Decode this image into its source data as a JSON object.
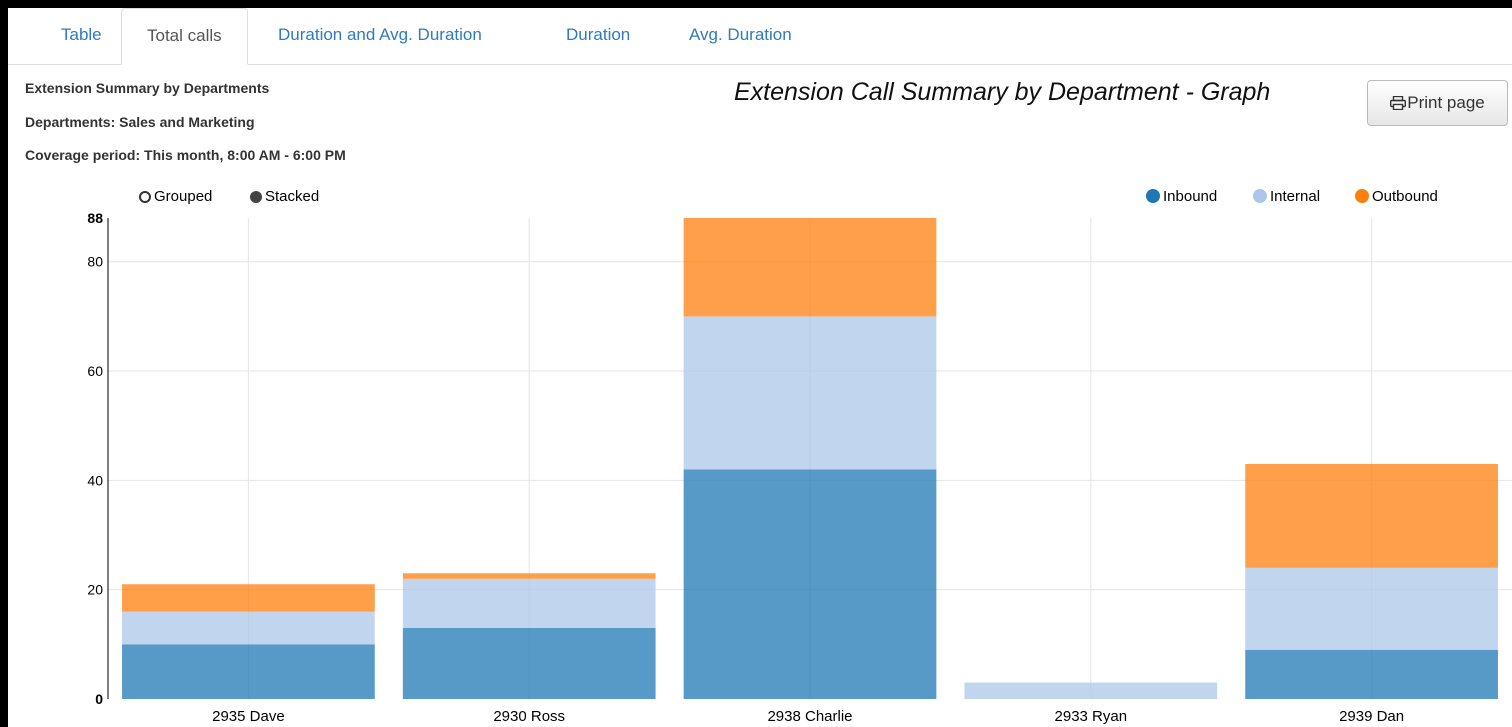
{
  "tabs": [
    {
      "label": "Table",
      "active": false
    },
    {
      "label": "Total calls",
      "active": true
    },
    {
      "label": "Duration and Avg. Duration",
      "active": false
    },
    {
      "label": "Duration",
      "active": false
    },
    {
      "label": "Avg. Duration",
      "active": false
    }
  ],
  "report": {
    "heading": "Extension Summary by Departments",
    "departments": "Departments: Sales and Marketing",
    "coverage": "Coverage period: This month, 8:00 AM - 6:00 PM"
  },
  "graph_title": "Extension Call Summary by Department - Graph",
  "print_button": {
    "label": "Print page",
    "icon": "printer-icon"
  },
  "mode_controls": {
    "grouped_label": "Grouped",
    "stacked_label": "Stacked",
    "selected": "Stacked"
  },
  "chart_data": {
    "type": "bar",
    "stacked": true,
    "categories": [
      "2935 Dave",
      "2930 Ross",
      "2938 Charlie",
      "2933 Ryan",
      "2939 Dan"
    ],
    "series": [
      {
        "name": "Inbound",
        "color": "#1f77b4",
        "values": [
          10,
          13,
          42,
          0,
          9
        ]
      },
      {
        "name": "Internal",
        "color": "#aec7e8",
        "values": [
          6,
          9,
          28,
          3,
          15
        ]
      },
      {
        "name": "Outbound",
        "color": "#ff7f0e",
        "values": [
          5,
          1,
          18,
          0,
          19
        ]
      }
    ],
    "yticks": [
      "0",
      "20",
      "40",
      "60",
      "80",
      "88"
    ],
    "ylim": [
      0,
      88
    ],
    "grid": true,
    "legend_position": "top-right",
    "title": "",
    "xlabel": "",
    "ylabel": ""
  }
}
